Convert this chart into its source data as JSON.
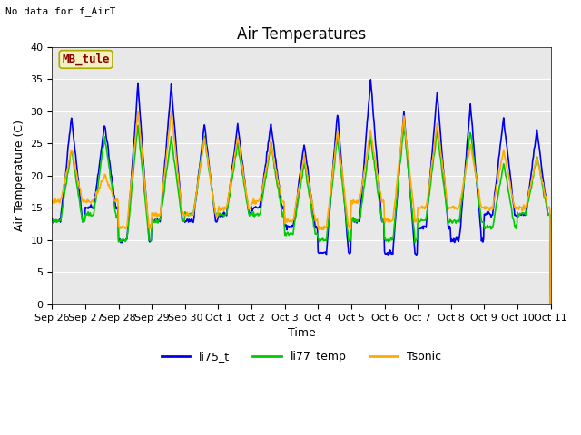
{
  "title": "Air Temperatures",
  "no_data_text": "No data for f_AirT",
  "mb_tule_label": "MB_tule",
  "ylabel": "Air Temperature (C)",
  "xlabel": "Time",
  "ylim": [
    0,
    40
  ],
  "yticks": [
    0,
    5,
    10,
    15,
    20,
    25,
    30,
    35,
    40
  ],
  "xtick_labels": [
    "Sep 26",
    "Sep 27",
    "Sep 28",
    "Sep 29",
    "Sep 30",
    "Oct 1",
    "Oct 2",
    "Oct 3",
    "Oct 4",
    "Oct 5",
    "Oct 6",
    "Oct 7",
    "Oct 8",
    "Oct 9",
    "Oct 10",
    "Oct 11"
  ],
  "legend_entries": [
    "li75_t",
    "li77_temp",
    "Tsonic"
  ],
  "legend_colors": [
    "#0000ee",
    "#00cc00",
    "#ffaa00"
  ],
  "bg_color": "#e8e8e8",
  "fig_color": "#ffffff",
  "line_width": 1.2,
  "title_fontsize": 12,
  "label_fontsize": 9,
  "tick_fontsize": 8
}
